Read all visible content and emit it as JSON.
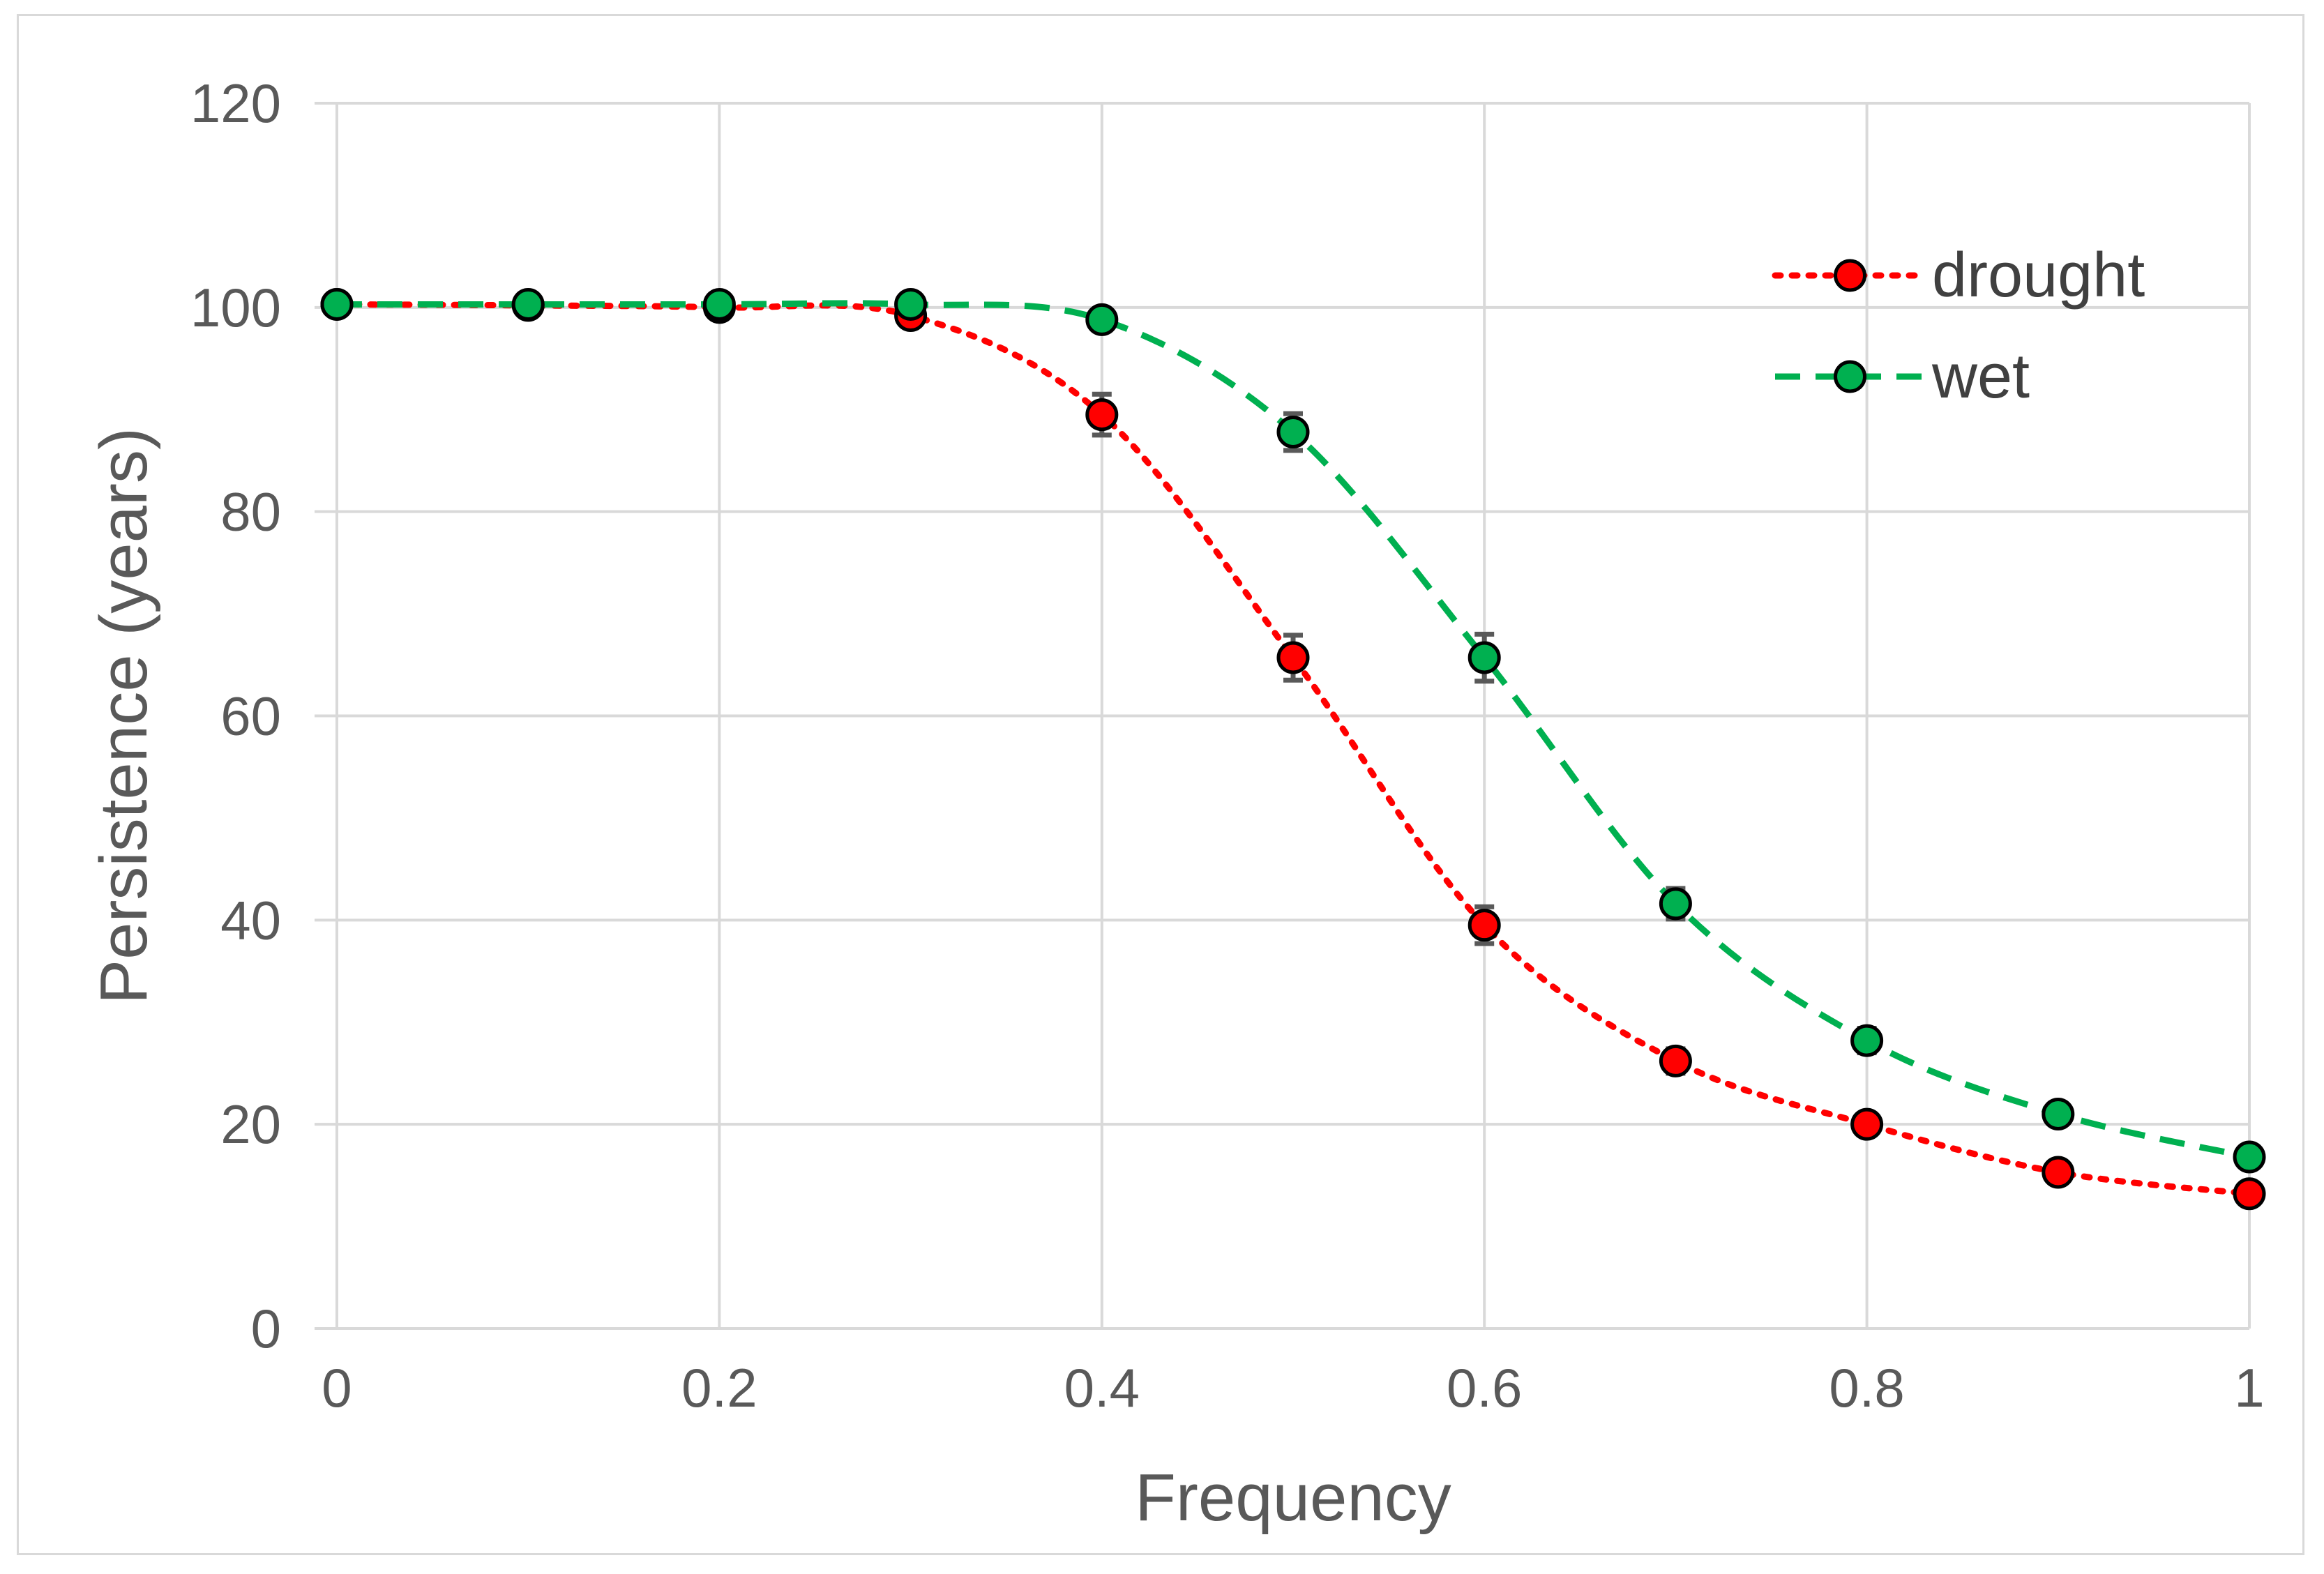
{
  "chart_data": {
    "type": "line",
    "title": "",
    "xlabel": "Frequency",
    "ylabel": "Persistence  (years)",
    "xlim": [
      0,
      1
    ],
    "ylim": [
      0,
      120
    ],
    "xticks": [
      0,
      0.2,
      0.4,
      0.6,
      0.8,
      1
    ],
    "xtick_labels": [
      "0",
      "0.2",
      "0.4",
      "0.6",
      "0.8",
      "1"
    ],
    "yticks": [
      0,
      20,
      40,
      60,
      80,
      100,
      120
    ],
    "ytick_labels": [
      "0",
      "20",
      "40",
      "60",
      "80",
      "100",
      "120"
    ],
    "grid": true,
    "legend_position": "top-right",
    "x": [
      0,
      0.1,
      0.2,
      0.3,
      0.4,
      0.5,
      0.6,
      0.7,
      0.8,
      0.9,
      1
    ],
    "series": [
      {
        "name": "drought",
        "line_style": "dotted",
        "color": "#ff0000",
        "marker_fill": "#ff0000",
        "values": [
          100.3,
          100.2,
          100.0,
          99.2,
          89.5,
          65.7,
          39.5,
          26.2,
          20.0,
          15.3,
          13.2
        ],
        "errors": [
          0,
          0,
          0,
          0,
          2.0,
          2.2,
          1.8,
          1.2,
          0.8,
          0.6,
          0.5
        ]
      },
      {
        "name": "wet",
        "line_style": "dashed",
        "color": "#00b050",
        "marker_fill": "#00b050",
        "values": [
          100.3,
          100.3,
          100.3,
          100.3,
          98.8,
          87.8,
          65.7,
          41.6,
          28.2,
          21.0,
          16.8
        ],
        "errors": [
          0,
          0,
          0,
          0,
          0.5,
          1.8,
          2.3,
          1.5,
          1.2,
          0.7,
          0.5
        ]
      }
    ],
    "gridline_color": "#d9d9d9",
    "errorbar_color": "#595959",
    "marker_edge_color": "#000000"
  }
}
